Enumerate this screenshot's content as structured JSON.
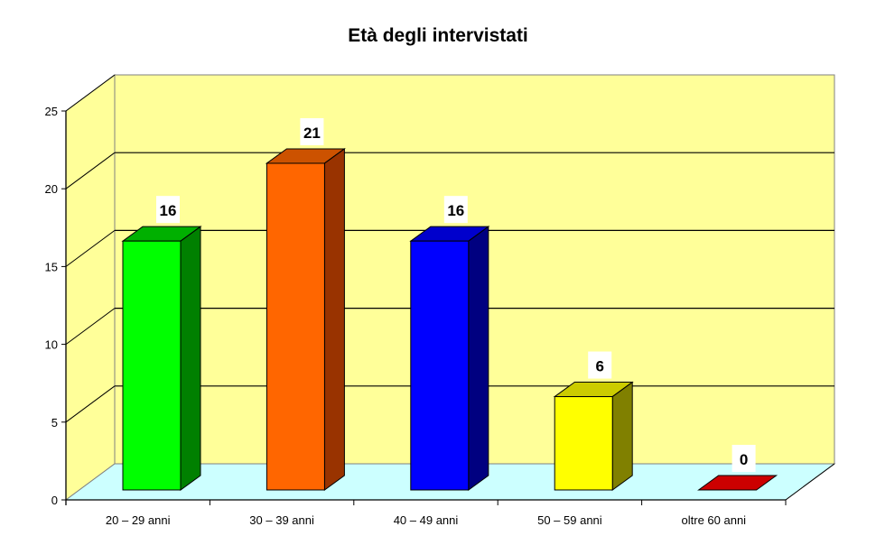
{
  "chart_data": {
    "type": "bar",
    "title": "Età degli intervistati",
    "xlabel": "",
    "ylabel": "",
    "categories": [
      "20 – 29 anni",
      "30 – 39 anni",
      "40 – 49 anni",
      "50 – 59 anni",
      "oltre 60 anni"
    ],
    "values": [
      16,
      21,
      16,
      6,
      0
    ],
    "data_labels": [
      "16",
      "21",
      "16",
      "6",
      "0"
    ],
    "colors": [
      "#00ff00",
      "#ff6600",
      "#0000ff",
      "#ffff00",
      "#cc0000"
    ],
    "side_colors": [
      "#008000",
      "#993300",
      "#000080",
      "#808000",
      "#800000"
    ],
    "top_colors": [
      "#00b000",
      "#cc5200",
      "#0000cc",
      "#cccc00",
      "#cc0000"
    ],
    "ylim": [
      0,
      25
    ],
    "yticks": [
      "0",
      "5",
      "10",
      "15",
      "20",
      "25"
    ],
    "grid": true,
    "legend": "none",
    "style": "3d",
    "wall_color": "#ffff99",
    "floor_color": "#ccffff"
  }
}
